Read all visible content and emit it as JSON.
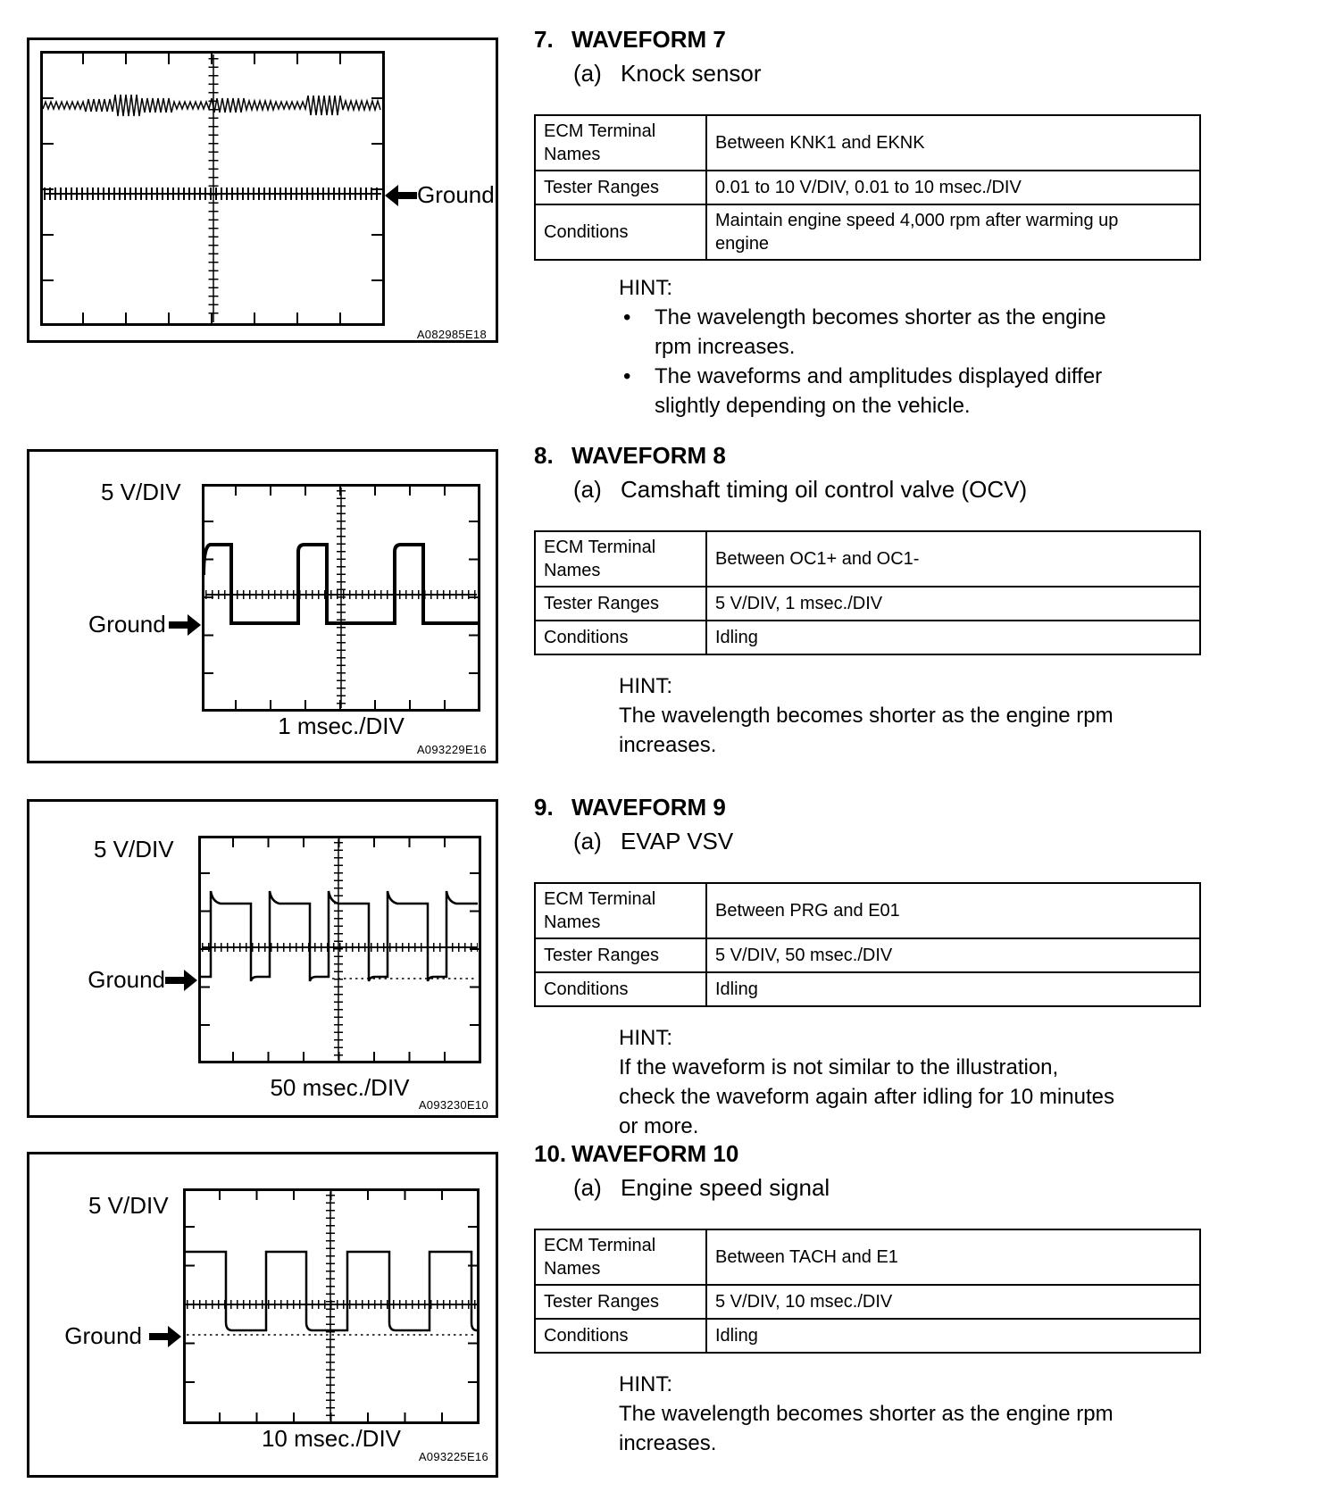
{
  "sections": [
    {
      "number": "7.",
      "title": "WAVEFORM 7",
      "item_label": "(a)",
      "item_text": "Knock sensor",
      "table": {
        "rows": [
          {
            "label": "ECM Terminal Names",
            "value": "Between KNK1 and EKNK"
          },
          {
            "label": "Tester Ranges",
            "value": "0.01 to 10 V/DIV, 0.01 to 10 msec./DIV"
          },
          {
            "label": "Conditions",
            "value": "Maintain engine speed 4,000 rpm after warming up engine"
          }
        ]
      },
      "hint_label": "HINT:",
      "hint_bullets": [
        {
          "lines": [
            "The wavelength becomes shorter as the engine",
            "rpm increases."
          ]
        },
        {
          "lines": [
            "The waveforms and amplitudes displayed differ",
            "slightly depending on the vehicle."
          ]
        }
      ]
    },
    {
      "number": "8.",
      "title": "WAVEFORM 8",
      "item_label": "(a)",
      "item_text": "Camshaft timing oil control valve (OCV)",
      "table": {
        "rows": [
          {
            "label": "ECM Terminal Names",
            "value": "Between OC1+ and OC1-"
          },
          {
            "label": "Tester Ranges",
            "value": "5 V/DIV, 1 msec./DIV"
          },
          {
            "label": "Conditions",
            "value": "Idling"
          }
        ]
      },
      "hint_label": "HINT:",
      "hint_lines": [
        "The wavelength becomes shorter as the engine rpm",
        "increases."
      ]
    },
    {
      "number": "9.",
      "title": "WAVEFORM 9",
      "item_label": "(a)",
      "item_text": "EVAP VSV",
      "table": {
        "rows": [
          {
            "label": "ECM Terminal Names",
            "value": "Between PRG and E01"
          },
          {
            "label": "Tester Ranges",
            "value": "5 V/DIV, 50 msec./DIV"
          },
          {
            "label": "Conditions",
            "value": "Idling"
          }
        ]
      },
      "hint_label": "HINT:",
      "hint_lines": [
        "If the waveform is not similar to the illustration,",
        "check the waveform again after idling for 10 minutes",
        "or more."
      ]
    },
    {
      "number": "10.",
      "title": "WAVEFORM 10",
      "item_label": "(a)",
      "item_text": "Engine speed signal",
      "table": {
        "rows": [
          {
            "label": "ECM Terminal Names",
            "value": "Between TACH and E1"
          },
          {
            "label": "Tester Ranges",
            "value": "5 V/DIV, 10 msec./DIV"
          },
          {
            "label": "Conditions",
            "value": "Idling"
          }
        ]
      },
      "hint_label": "HINT:",
      "hint_lines": [
        "The wavelength becomes shorter as the engine rpm",
        "increases."
      ]
    }
  ],
  "panels": [
    {
      "ground_label": "Ground",
      "code": "A082985E18"
    },
    {
      "v_div_label": "5 V/DIV",
      "ground_label": "Ground",
      "time_div_label": "1 msec./DIV",
      "code": "A093229E16"
    },
    {
      "v_div_label": "5 V/DIV",
      "ground_label": "Ground",
      "time_div_label": "50 msec./DIV",
      "code": "A093230E10"
    },
    {
      "v_div_label": "5 V/DIV",
      "ground_label": "Ground",
      "time_div_label": "10 msec./DIV",
      "code": "A093225E16"
    }
  ]
}
